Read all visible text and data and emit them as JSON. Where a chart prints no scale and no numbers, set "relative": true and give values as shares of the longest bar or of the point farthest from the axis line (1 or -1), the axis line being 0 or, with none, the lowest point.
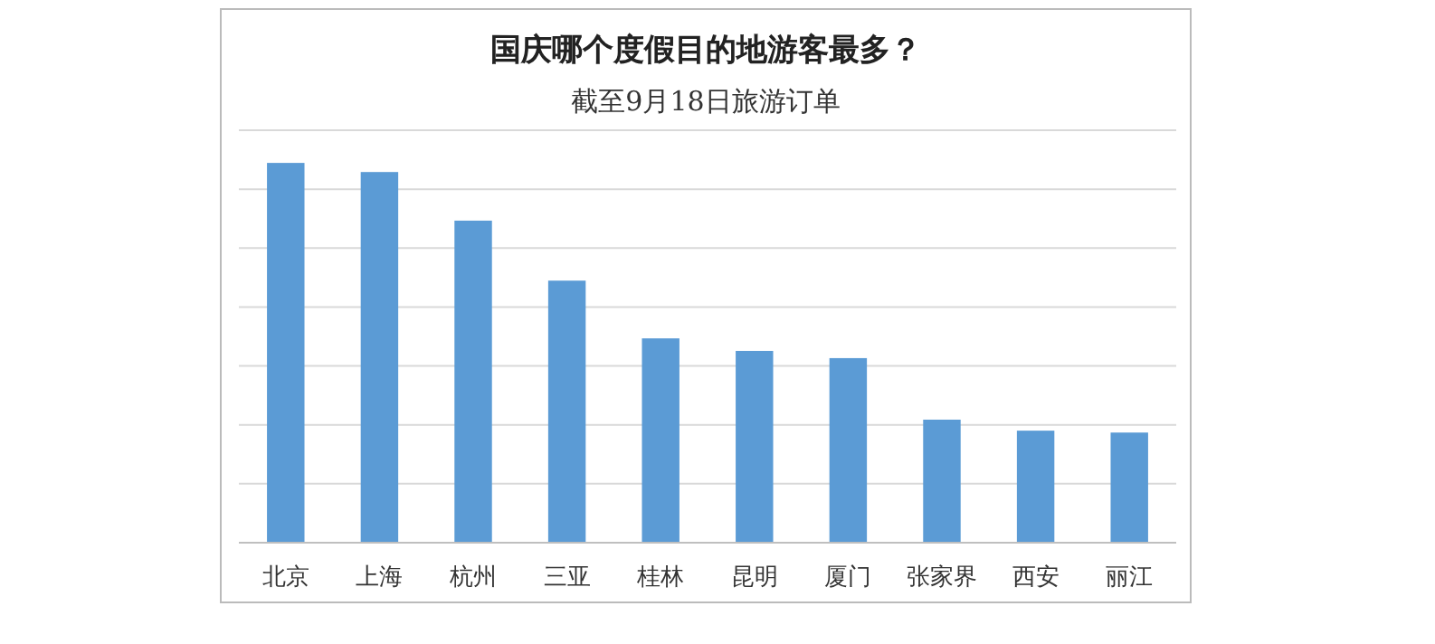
{
  "chart_data": {
    "type": "bar",
    "title": "国庆哪个度假目的地游客最多？",
    "subtitle": "截至9月18日旅游订单",
    "categories": [
      "北京",
      "上海",
      "杭州",
      "三亚",
      "桂林",
      "昆明",
      "厦门",
      "张家界",
      "西安",
      "丽江"
    ],
    "values": [
      1,
      0.976,
      0.848,
      0.69,
      0.538,
      0.505,
      0.486,
      0.324,
      0.295,
      0.29
    ],
    "relative": true,
    "color": "#5b9bd5",
    "grid": "y"
  }
}
